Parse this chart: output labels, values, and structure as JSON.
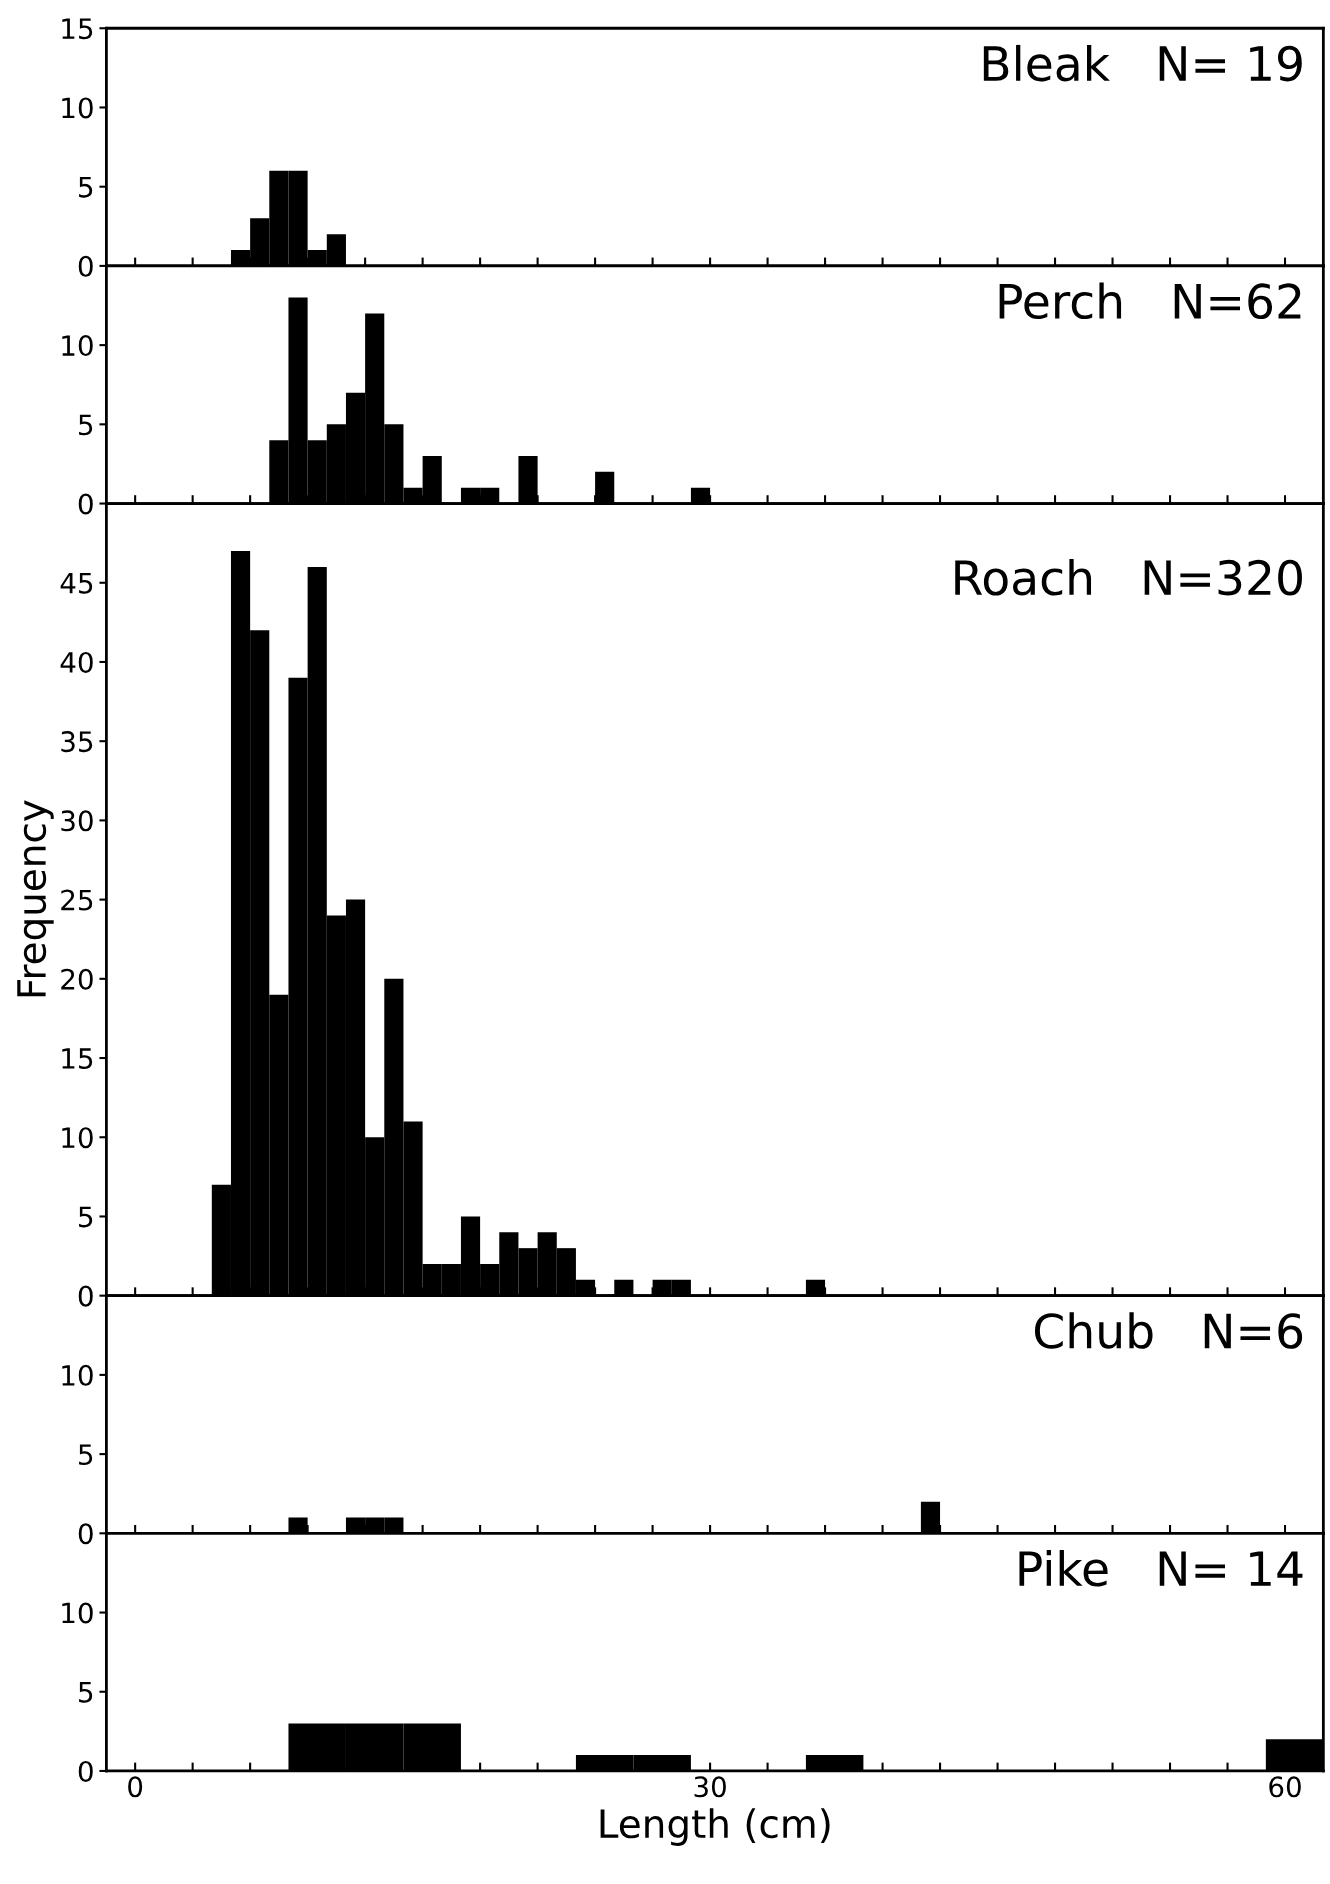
{
  "chart_data": [
    {
      "type": "histogram",
      "bins": [
        5,
        6,
        7,
        8,
        9,
        10,
        11
      ],
      "values": [
        1,
        3,
        6,
        6,
        1,
        2
      ],
      "color": "#000000",
      "xlim": [
        -1.5,
        62
      ],
      "ylim": [
        0,
        15
      ],
      "yticks": [
        0,
        5,
        10,
        15
      ],
      "xticks": [
        0,
        {
          "value": 3,
          "label": null
        },
        {
          "value": 6,
          "label": null
        },
        {
          "value": 9,
          "label": null
        },
        {
          "value": 12,
          "label": null
        },
        {
          "value": 15,
          "label": null
        },
        {
          "value": 18,
          "label": null
        },
        {
          "value": 21,
          "label": null
        },
        {
          "value": 24,
          "label": null
        },
        {
          "value": 27,
          "label": null
        },
        30,
        {
          "value": 33,
          "label": null
        },
        {
          "value": 36,
          "label": null
        },
        {
          "value": 39,
          "label": null
        },
        {
          "value": 42,
          "label": null
        },
        {
          "value": 45,
          "label": null
        },
        {
          "value": 48,
          "label": null
        },
        {
          "value": 51,
          "label": null
        },
        {
          "value": 54,
          "label": null
        },
        {
          "value": 57,
          "label": null
        },
        60
      ],
      "tick_labels": "y",
      "annotations": [
        "Bleak   N= 19"
      ]
    },
    {
      "type": "histogram",
      "bins": [
        7,
        8,
        9,
        10,
        11,
        12,
        13,
        14,
        15,
        16,
        17,
        18,
        19,
        20,
        21,
        22,
        23,
        24,
        25,
        26,
        27,
        28,
        29,
        30
      ],
      "values": [
        4,
        13,
        4,
        5,
        7,
        12,
        5,
        1,
        3,
        0,
        1,
        1,
        0,
        3,
        0,
        0,
        0,
        2,
        0,
        0,
        0,
        0,
        1
      ],
      "color": "#000000",
      "xlim": [
        -1.5,
        62
      ],
      "ylim": [
        0,
        15
      ],
      "yticks": [
        0,
        5,
        10
      ],
      "xticks": [
        0,
        {
          "value": 3,
          "label": null
        },
        {
          "value": 6,
          "label": null
        },
        {
          "value": 9,
          "label": null
        },
        {
          "value": 12,
          "label": null
        },
        {
          "value": 15,
          "label": null
        },
        {
          "value": 18,
          "label": null
        },
        {
          "value": 21,
          "label": null
        },
        {
          "value": 24,
          "label": null
        },
        {
          "value": 27,
          "label": null
        },
        30,
        {
          "value": 33,
          "label": null
        },
        {
          "value": 36,
          "label": null
        },
        {
          "value": 39,
          "label": null
        },
        {
          "value": 42,
          "label": null
        },
        {
          "value": 45,
          "label": null
        },
        {
          "value": 48,
          "label": null
        },
        {
          "value": 51,
          "label": null
        },
        {
          "value": 54,
          "label": null
        },
        {
          "value": 57,
          "label": null
        },
        60
      ],
      "tick_labels": "y",
      "annotations": [
        "Perch   N=62"
      ]
    },
    {
      "type": "histogram",
      "bins": [
        4,
        5,
        6,
        7,
        8,
        9,
        10,
        11,
        12,
        13,
        14,
        15,
        16,
        17,
        18,
        19,
        20,
        21,
        22,
        23,
        24,
        25,
        26,
        27,
        28,
        29,
        30,
        31,
        32,
        33,
        34,
        35,
        36
      ],
      "values": [
        7,
        47,
        42,
        19,
        39,
        46,
        24,
        25,
        10,
        20,
        11,
        2,
        2,
        5,
        2,
        4,
        3,
        4,
        3,
        1,
        0,
        1,
        0,
        1,
        1,
        0,
        0,
        0,
        0,
        0,
        0,
        1
      ],
      "color": "#000000",
      "xlim": [
        -1.5,
        62
      ],
      "ylim": [
        0,
        50
      ],
      "yticks": [
        0,
        5,
        10,
        15,
        20,
        25,
        30,
        35,
        40,
        45
      ],
      "xticks": [
        0,
        {
          "value": 3,
          "label": null
        },
        {
          "value": 6,
          "label": null
        },
        {
          "value": 9,
          "label": null
        },
        {
          "value": 12,
          "label": null
        },
        {
          "value": 15,
          "label": null
        },
        {
          "value": 18,
          "label": null
        },
        {
          "value": 21,
          "label": null
        },
        {
          "value": 24,
          "label": null
        },
        {
          "value": 27,
          "label": null
        },
        30,
        {
          "value": 33,
          "label": null
        },
        {
          "value": 36,
          "label": null
        },
        {
          "value": 39,
          "label": null
        },
        {
          "value": 42,
          "label": null
        },
        {
          "value": 45,
          "label": null
        },
        {
          "value": 48,
          "label": null
        },
        {
          "value": 51,
          "label": null
        },
        {
          "value": 54,
          "label": null
        },
        {
          "value": 57,
          "label": null
        },
        60
      ],
      "tick_labels": "y",
      "ylabel": "Frequency",
      "annotations": [
        "Roach   N=320"
      ]
    },
    {
      "type": "histogram",
      "bins": [
        8,
        9,
        10,
        11,
        12,
        13,
        14,
        15,
        16,
        17,
        18,
        19,
        20,
        21,
        22,
        23,
        24,
        25,
        26,
        27,
        28,
        29,
        30,
        31,
        32,
        33,
        34,
        35,
        36,
        37,
        38,
        39,
        40,
        41,
        42
      ],
      "values": [
        1,
        0,
        0,
        1,
        1,
        1,
        0,
        0,
        0,
        0,
        0,
        0,
        0,
        0,
        0,
        0,
        0,
        0,
        0,
        0,
        0,
        0,
        0,
        0,
        0,
        0,
        0,
        0,
        0,
        0,
        0,
        0,
        0,
        2
      ],
      "color": "#000000",
      "xlim": [
        -1.5,
        62
      ],
      "ylim": [
        0,
        15
      ],
      "yticks": [
        0,
        5,
        10
      ],
      "xticks": [
        0,
        {
          "value": 3,
          "label": null
        },
        {
          "value": 6,
          "label": null
        },
        {
          "value": 9,
          "label": null
        },
        {
          "value": 12,
          "label": null
        },
        {
          "value": 15,
          "label": null
        },
        {
          "value": 18,
          "label": null
        },
        {
          "value": 21,
          "label": null
        },
        {
          "value": 24,
          "label": null
        },
        {
          "value": 27,
          "label": null
        },
        30,
        {
          "value": 33,
          "label": null
        },
        {
          "value": 36,
          "label": null
        },
        {
          "value": 39,
          "label": null
        },
        {
          "value": 42,
          "label": null
        },
        {
          "value": 45,
          "label": null
        },
        {
          "value": 48,
          "label": null
        },
        {
          "value": 51,
          "label": null
        },
        {
          "value": 54,
          "label": null
        },
        {
          "value": 57,
          "label": null
        },
        60
      ],
      "tick_labels": "y",
      "annotations": [
        "Chub   N=6"
      ]
    },
    {
      "type": "histogram",
      "bins": [
        8,
        11,
        14,
        17,
        20,
        23,
        26,
        29,
        32,
        35,
        38,
        41,
        44,
        47,
        50,
        53,
        56,
        59,
        62
      ],
      "values": [
        3,
        3,
        3,
        0,
        0,
        1,
        1,
        0,
        0,
        1,
        0,
        0,
        0,
        0,
        0,
        0,
        0,
        2
      ],
      "color": "#000000",
      "xlim": [
        -1.5,
        62
      ],
      "ylim": [
        0,
        15
      ],
      "yticks": [
        0,
        5,
        10
      ],
      "xticks": [
        0,
        {
          "value": 3,
          "label": null
        },
        {
          "value": 6,
          "label": null
        },
        {
          "value": 9,
          "label": null
        },
        {
          "value": 12,
          "label": null
        },
        {
          "value": 15,
          "label": null
        },
        {
          "value": 18,
          "label": null
        },
        {
          "value": 21,
          "label": null
        },
        {
          "value": 24,
          "label": null
        },
        {
          "value": 27,
          "label": null
        },
        30,
        {
          "value": 33,
          "label": null
        },
        {
          "value": 36,
          "label": null
        },
        {
          "value": 39,
          "label": null
        },
        {
          "value": 42,
          "label": null
        },
        {
          "value": 45,
          "label": null
        },
        {
          "value": 48,
          "label": null
        },
        {
          "value": 51,
          "label": null
        },
        {
          "value": 54,
          "label": null
        },
        {
          "value": 57,
          "label": null
        },
        60
      ],
      "xlabel": "Length (cm)",
      "annotations": [
        "Pike   N= 14"
      ]
    }
  ]
}
